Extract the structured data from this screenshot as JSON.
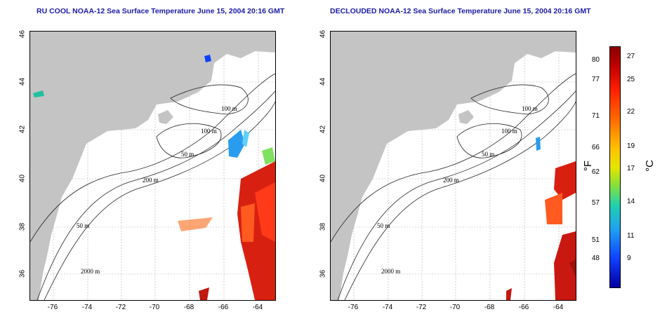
{
  "titles": {
    "left": "RU COOL NOAA-12 Sea Surface Temperature June 15, 2004 20:16 GMT",
    "right": "DECLOUDED NOAA-12 Sea Surface Temperature June 15, 2004 20:16 GMT"
  },
  "axes": {
    "lat_ticks": [
      "46",
      "44",
      "42",
      "40",
      "38",
      "36"
    ],
    "lon_ticks": [
      "-76",
      "-74",
      "-72",
      "-70",
      "-68",
      "-66",
      "-64"
    ]
  },
  "contour_labels": [
    "100 m",
    "100 m",
    "50 m",
    "200 m",
    "50 m",
    "2000 m"
  ],
  "colorbar": {
    "fahrenheit_ticks": [
      "80",
      "77",
      "71",
      "66",
      "62",
      "57",
      "51",
      "48"
    ],
    "celsius_ticks": [
      "27",
      "25",
      "22",
      "19",
      "17",
      "14",
      "11",
      "9"
    ],
    "f_unit": "°F",
    "c_unit": "°C"
  },
  "colors": {
    "land": "#c4c4c4",
    "title": "#1a1aa6"
  }
}
